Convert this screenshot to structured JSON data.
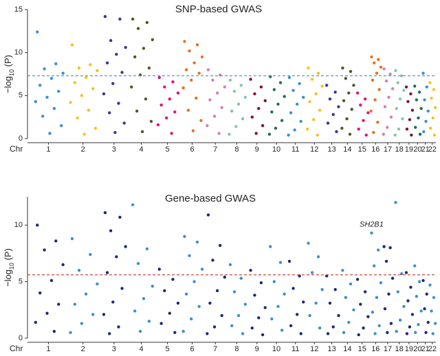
{
  "chart_data": [
    {
      "type": "manhattan",
      "title": "SNP-based GWAS",
      "ylabel": "−log10 (P)",
      "xlabel": "Chr",
      "ylim": [
        0,
        15
      ],
      "yticks": [
        0,
        5,
        10,
        15
      ],
      "threshold": 7.3,
      "threshold_color": "#5b8fcf",
      "categories": [
        "1",
        "2",
        "3",
        "4",
        "5",
        "6",
        "7",
        "8",
        "9",
        "10",
        "11",
        "12",
        "13",
        "14",
        "15",
        "16",
        "17",
        "18",
        "19",
        "20",
        "21",
        "22"
      ],
      "colors": [
        "#3a8fd0",
        "#f5c21b",
        "#3b3591",
        "#4a5a28",
        "#e0107a",
        "#e8701e",
        "#d27fb8",
        "#82c9a1",
        "#7a1530",
        "#1f6e5a",
        "#3a8fd0",
        "#f5c21b",
        "#3b3591",
        "#4a5a28",
        "#e0107a",
        "#e8701e",
        "#d27fb8",
        "#82c9a1",
        "#7a1530",
        "#1f6e5a",
        "#3a8fd0",
        "#f5c21b"
      ],
      "values": [
        [
          12.4,
          8.7,
          8.1,
          7.6,
          7.0,
          6.2,
          5.5,
          4.8,
          4.3,
          3.5,
          2.6,
          1.5,
          0.6
        ],
        [
          10.9,
          8.6,
          8.2,
          7.9,
          7.1,
          6.5,
          5.8,
          5.0,
          4.2,
          3.3,
          2.4,
          1.2,
          0.5
        ],
        [
          14.2,
          13.9,
          11.4,
          10.6,
          9.8,
          8.8,
          7.7,
          6.4,
          5.2,
          4.1,
          3.0,
          1.8,
          0.7
        ],
        [
          13.9,
          13.5,
          12.8,
          11.5,
          10.5,
          9.5,
          8.2,
          7.4,
          6.0,
          4.6,
          3.2,
          2.0,
          0.8
        ],
        [
          7.1,
          6.6,
          6.0,
          5.3,
          4.6,
          3.9,
          3.1,
          2.4,
          1.6,
          0.6
        ],
        [
          11.3,
          10.9,
          10.2,
          9.5,
          8.8,
          8.0,
          7.6,
          6.8,
          5.9,
          4.7,
          3.3,
          2.1,
          0.9
        ],
        [
          8.0,
          7.4,
          6.8,
          6.0,
          5.3,
          4.5,
          3.6,
          2.6,
          1.5,
          0.6
        ],
        [
          6.8,
          6.2,
          5.5,
          4.8,
          4.0,
          3.2,
          2.3,
          1.4,
          0.5
        ],
        [
          6.9,
          6.0,
          5.2,
          4.4,
          3.5,
          2.5,
          1.5,
          0.6
        ],
        [
          7.2,
          6.5,
          5.7,
          4.9,
          4.0,
          3.1,
          2.1,
          1.2,
          0.5
        ],
        [
          7.1,
          6.4,
          5.6,
          4.8,
          4.0,
          3.0,
          2.0,
          1.0,
          0.4
        ],
        [
          8.2,
          7.6,
          6.9,
          6.1,
          5.2,
          4.3,
          3.3,
          2.2,
          1.1,
          0.4
        ],
        [
          6.2,
          5.4,
          4.6,
          3.7,
          2.8,
          1.8,
          0.8
        ],
        [
          8.2,
          7.8,
          7.0,
          6.2,
          5.3,
          4.4,
          3.4,
          2.3,
          1.2,
          0.5
        ],
        [
          5.3,
          4.6,
          3.9,
          3.0,
          2.1,
          1.1,
          0.4
        ],
        [
          9.5,
          9.2,
          8.8,
          8.3,
          7.6,
          6.8,
          5.7,
          4.5,
          3.2,
          1.9,
          0.7
        ],
        [
          8.1,
          7.5,
          6.7,
          5.8,
          4.8,
          3.7,
          2.5,
          1.3,
          0.5
        ],
        [
          7.9,
          7.3,
          6.5,
          5.6,
          4.6,
          3.5,
          2.3,
          1.1,
          0.4
        ],
        [
          6.0,
          5.2,
          4.3,
          3.3,
          2.2,
          1.1,
          0.4
        ],
        [
          6.1,
          5.4,
          4.5,
          3.5,
          2.4,
          1.3,
          0.5
        ],
        [
          7.6,
          6.0,
          4.5,
          3.2,
          2.0,
          0.8
        ],
        [
          6.5,
          5.7,
          4.7,
          3.6,
          2.4,
          1.2,
          0.4
        ]
      ]
    },
    {
      "type": "manhattan",
      "title": "Gene-based GWAS",
      "ylabel": "−log10 (P)",
      "xlabel": "Chr",
      "ylim": [
        0,
        12.5
      ],
      "yticks": [
        0,
        5,
        10
      ],
      "threshold": 5.6,
      "threshold_color": "#c0392b",
      "categories": [
        "1",
        "2",
        "3",
        "4",
        "5",
        "6",
        "7",
        "8",
        "9",
        "10",
        "11",
        "12",
        "13",
        "14",
        "15",
        "16",
        "17",
        "18",
        "19",
        "20",
        "21",
        "22"
      ],
      "colors": [
        "#1b2a78",
        "#3a92c8",
        "#1b2a78",
        "#3a92c8",
        "#1b2a78",
        "#3a92c8",
        "#1b2a78",
        "#3a92c8",
        "#1b2a78",
        "#3a92c8",
        "#1b2a78",
        "#3a92c8",
        "#1b2a78",
        "#3a92c8",
        "#1b2a78",
        "#3a92c8",
        "#1b2a78",
        "#3a92c8",
        "#1b2a78",
        "#3a92c8",
        "#1b2a78",
        "#3a92c8"
      ],
      "annotations": [
        {
          "text": "SH2B1",
          "category": "16"
        }
      ],
      "values": [
        [
          10.0,
          8.6,
          7.8,
          6.5,
          5.1,
          4.0,
          3.0,
          2.2,
          1.4,
          0.6
        ],
        [
          8.8,
          7.4,
          6.0,
          4.8,
          3.9,
          3.0,
          2.1,
          1.3,
          0.5
        ],
        [
          11.1,
          10.7,
          9.5,
          8.1,
          7.2,
          5.8,
          4.4,
          3.2,
          2.1,
          1.0,
          0.4
        ],
        [
          11.8,
          7.9,
          6.6,
          4.6,
          3.5,
          2.4,
          1.5,
          0.6
        ],
        [
          6.1,
          5.2,
          4.2,
          3.1,
          2.2,
          1.3,
          0.5
        ],
        [
          9.0,
          8.5,
          7.3,
          6.1,
          5.0,
          3.9,
          2.8,
          1.7,
          0.6
        ],
        [
          10.9,
          8.2,
          6.9,
          5.4,
          4.2,
          3.1,
          2.0,
          1.0,
          0.4
        ],
        [
          6.5,
          5.3,
          4.1,
          3.0,
          2.0,
          1.1,
          0.4
        ],
        [
          6.0,
          4.9,
          3.8,
          2.7,
          1.8,
          0.9,
          0.3
        ],
        [
          8.1,
          6.7,
          5.0,
          3.9,
          2.8,
          1.7,
          0.7
        ],
        [
          6.8,
          5.5,
          4.4,
          3.2,
          2.1,
          1.1,
          0.4
        ],
        [
          8.4,
          7.2,
          5.8,
          4.3,
          3.1,
          2.0,
          0.9
        ],
        [
          5.5,
          4.3,
          3.1,
          2.0,
          1.0,
          0.4
        ],
        [
          6.0,
          4.8,
          3.6,
          2.5,
          1.4,
          0.5
        ],
        [
          5.2,
          4.1,
          3.0,
          1.9,
          0.9,
          0.3
        ],
        [
          9.3,
          7.8,
          6.4,
          4.9,
          3.6,
          2.3,
          1.1,
          0.4
        ],
        [
          8.1,
          8.0,
          6.8,
          5.3,
          3.9,
          2.6,
          1.3,
          0.5
        ],
        [
          12.0,
          5.7,
          4.1,
          2.8,
          1.6,
          0.6
        ],
        [
          5.8,
          4.5,
          3.3,
          2.1,
          1.0,
          0.4
        ],
        [
          6.4,
          5.0,
          3.7,
          2.4,
          1.2,
          0.5
        ],
        [
          5.1,
          3.9,
          2.6,
          1.4,
          0.5
        ],
        [
          4.7,
          3.6,
          2.4,
          1.3,
          0.4
        ]
      ]
    }
  ]
}
